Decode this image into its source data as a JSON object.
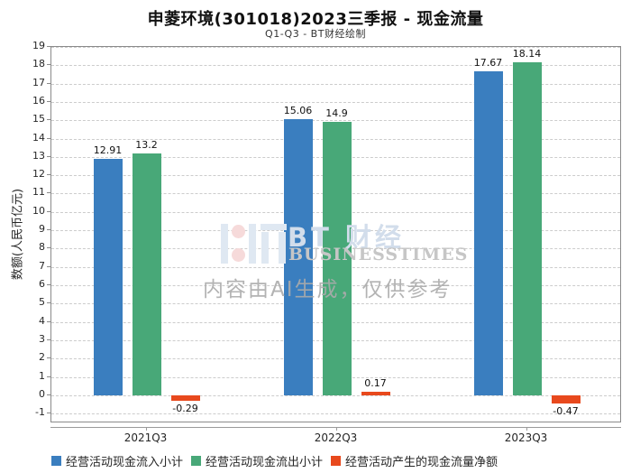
{
  "page": {
    "title": "申菱环境(301018)2023三季报 - 现金流量",
    "subtitle": "Q1-Q3 - BT财经绘制"
  },
  "chart_data": {
    "type": "bar",
    "title": "申菱环境(301018)2023三季报 - 现金流量",
    "subtitle": "Q1-Q3 - BT财经绘制",
    "ylabel": "数额(人民币亿元)",
    "xlabel": "",
    "categories": [
      "2021Q3",
      "2022Q3",
      "2023Q3"
    ],
    "series": [
      {
        "name": "经营活动现金流入小计",
        "color": "#3a7ebf",
        "values": [
          12.91,
          15.06,
          17.67
        ]
      },
      {
        "name": "经营活动现金流出小计",
        "color": "#48a878",
        "values": [
          13.2,
          14.9,
          18.14
        ]
      },
      {
        "name": "经营活动产生的现金流量净额",
        "color": "#e8491d",
        "values": [
          -0.29,
          0.17,
          -0.47
        ]
      }
    ],
    "ylim": [
      -1.53,
      19
    ],
    "ytick_step": 1,
    "grid": "horizontal-dashed",
    "legend_position": "bottom-left",
    "value_labels_shown": true
  },
  "watermark": {
    "brand": "BT 财经",
    "brand_sub": "BUSINESSTIMES",
    "disclaimer": "内容由AI生成，仅供参考"
  }
}
